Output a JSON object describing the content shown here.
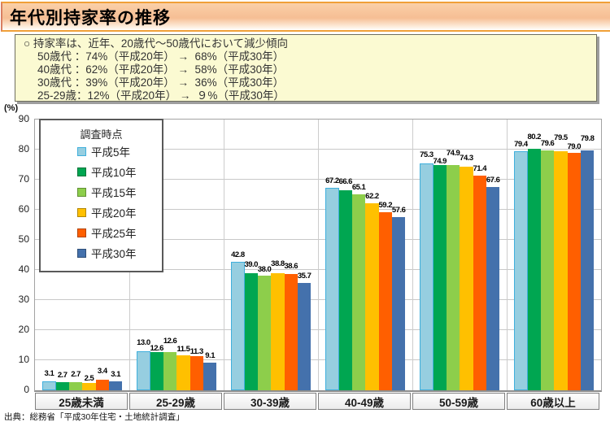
{
  "header": {
    "title": "年代別持家率の推移"
  },
  "note": {
    "lines": [
      "○ 持家率は、近年、20歳代～50歳代において減少傾向",
      "50歳代 ：74%（平成20年） →  68%（平成30年）",
      "40歳代 ：62%（平成20年） →  58%（平成30年）",
      "30歳代 ：39%（平成20年） →  36%（平成30年）",
      "25-29歳：12%（平成20年） →  ９%（平成30年）"
    ]
  },
  "chart_data": {
    "type": "bar",
    "unit_label": "(%)",
    "legend_title": "調査時点",
    "legend_position": "upper-left-inside",
    "grid": true,
    "ylim": [
      0,
      90
    ],
    "ytick_step": 10,
    "categories": [
      "25歳未満",
      "25-29歳",
      "30-39歳",
      "40-49歳",
      "50-59歳",
      "60歳以上"
    ],
    "series": [
      {
        "name": "平成5年",
        "color": "#96cee0",
        "values": [
          3.1,
          13.0,
          42.8,
          67.2,
          75.3,
          79.4
        ]
      },
      {
        "name": "平成10年",
        "color": "#00a651",
        "values": [
          2.7,
          12.6,
          39.0,
          66.6,
          74.9,
          80.2
        ]
      },
      {
        "name": "平成15年",
        "color": "#8dce4b",
        "values": [
          2.7,
          12.6,
          38.0,
          65.1,
          74.9,
          79.6
        ]
      },
      {
        "name": "平成20年",
        "color": "#ffc000",
        "values": [
          2.5,
          11.5,
          38.8,
          62.2,
          74.3,
          79.5
        ]
      },
      {
        "name": "平成25年",
        "color": "#ff5f00",
        "values": [
          3.4,
          11.3,
          38.6,
          59.2,
          71.4,
          79.0
        ]
      },
      {
        "name": "平成30年",
        "color": "#4471ac",
        "values": [
          3.1,
          9.1,
          35.7,
          57.6,
          67.6,
          79.8
        ]
      }
    ],
    "label_dy": [
      [
        1,
        0,
        1,
        -3,
        2,
        0
      ],
      [
        2,
        -4,
        5,
        -1,
        -3,
        0
      ],
      [
        0,
        2,
        -1,
        3,
        1,
        0
      ],
      [
        0,
        2,
        0,
        0,
        0,
        0
      ],
      [
        2,
        -4,
        6,
        2,
        0,
        0
      ],
      [
        0,
        6,
        0,
        8,
        -1,
        6
      ]
    ]
  },
  "source": "出典：総務省「平成30年住宅・土地統計調査」"
}
